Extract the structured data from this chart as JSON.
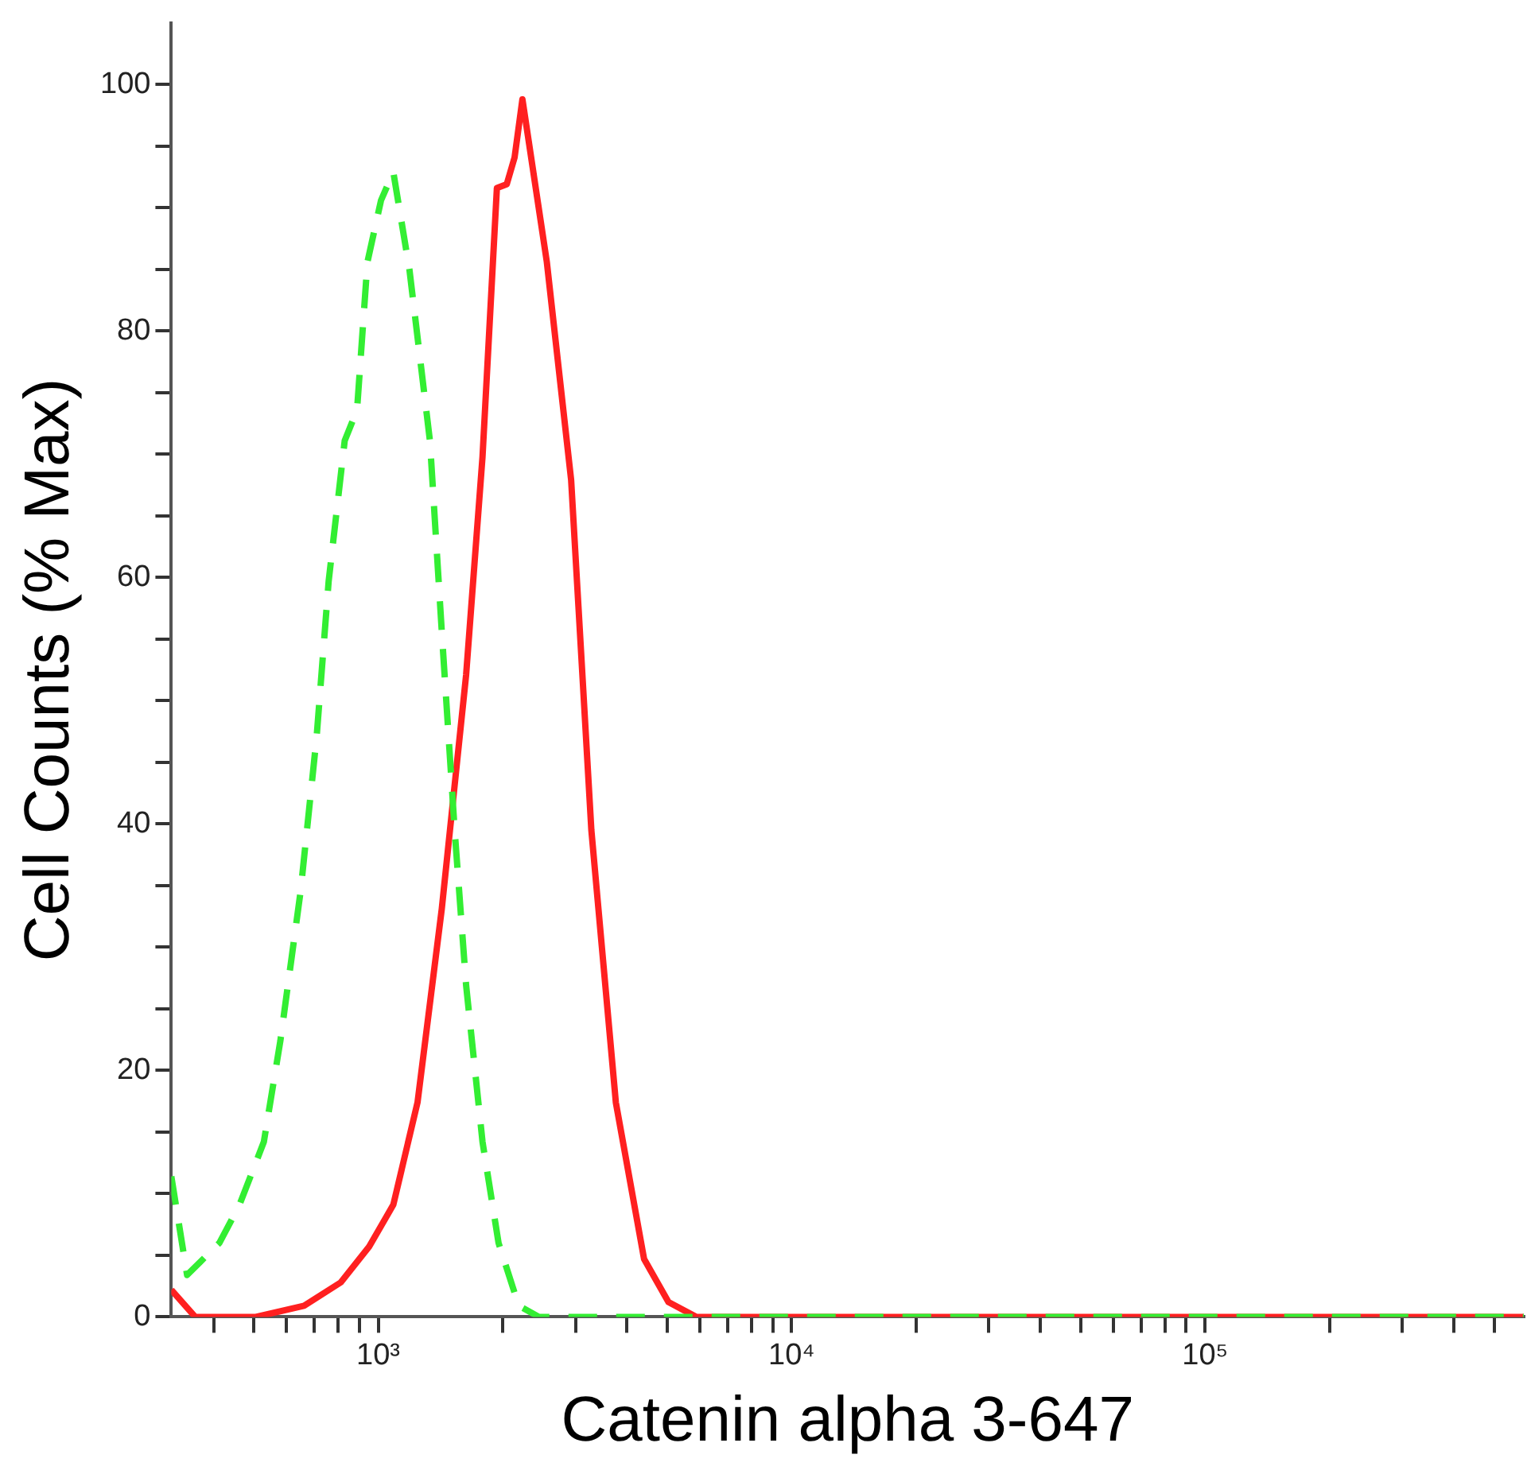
{
  "chart_data": {
    "type": "line",
    "xlabel": "Catenin alpha 3-647",
    "ylabel": "Cell Counts (% Max)",
    "log": "x",
    "grid": false,
    "legend": false,
    "marker": "none",
    "xlim": [
      316,
      590000
    ],
    "xticks": [
      {
        "value": 400,
        "label": null
      },
      {
        "value": 500,
        "label": null
      },
      {
        "value": 600,
        "label": null
      },
      {
        "value": 700,
        "label": null
      },
      {
        "value": 800,
        "label": null
      },
      {
        "value": 900,
        "label": null
      },
      {
        "value": 1000,
        "label": "10³"
      },
      {
        "value": 2000,
        "label": null
      },
      {
        "value": 3000,
        "label": null
      },
      {
        "value": 4000,
        "label": null
      },
      {
        "value": 5000,
        "label": null
      },
      {
        "value": 6000,
        "label": null
      },
      {
        "value": 7000,
        "label": null
      },
      {
        "value": 8000,
        "label": null
      },
      {
        "value": 9000,
        "label": null
      },
      {
        "value": 10000,
        "label": "10⁴"
      },
      {
        "value": 20000,
        "label": null
      },
      {
        "value": 30000,
        "label": null
      },
      {
        "value": 40000,
        "label": null
      },
      {
        "value": 50000,
        "label": null
      },
      {
        "value": 60000,
        "label": null
      },
      {
        "value": 70000,
        "label": null
      },
      {
        "value": 80000,
        "label": null
      },
      {
        "value": 90000,
        "label": null
      },
      {
        "value": 100000,
        "label": "10⁵"
      },
      {
        "value": 200000,
        "label": null
      },
      {
        "value": 300000,
        "label": null
      },
      {
        "value": 400000,
        "label": null
      },
      {
        "value": 500000,
        "label": null
      }
    ],
    "ylim": [
      0,
      105
    ],
    "yticks": [
      0,
      {
        "value": 5,
        "label": null
      },
      {
        "value": 10,
        "label": null
      },
      {
        "value": 15,
        "label": null
      },
      20,
      {
        "value": 25,
        "label": null
      },
      {
        "value": 30,
        "label": null
      },
      {
        "value": 35,
        "label": null
      },
      40,
      {
        "value": 45,
        "label": null
      },
      {
        "value": 50,
        "label": null
      },
      {
        "value": 55,
        "label": null
      },
      60,
      {
        "value": 65,
        "label": null
      },
      {
        "value": 70,
        "label": null
      },
      {
        "value": 75,
        "label": null
      },
      80,
      {
        "value": 85,
        "label": null
      },
      {
        "value": 90,
        "label": null
      },
      {
        "value": 95,
        "label": null
      },
      100
    ],
    "series": [
      {
        "color": "#33ee33",
        "line_style": "dashed",
        "x": [
          316,
          345,
          413,
          462,
          529,
          580,
          649,
          710,
          759,
          830,
          889,
          942,
          1016,
          1088,
          1190,
          1334,
          1427,
          1531,
          1632,
          1788,
          1955,
          2188,
          2449,
          10000,
          100000,
          590000
        ],
        "values": [
          11.4,
          3.4,
          6,
          9.1,
          14.2,
          22.4,
          34.5,
          47.1,
          59.7,
          71.1,
          73.6,
          85.6,
          90.6,
          92.9,
          85,
          71.1,
          55.3,
          39.5,
          26.9,
          14.2,
          6,
          0.9,
          0,
          0,
          0,
          0
        ]
      },
      {
        "color": "#ff2020",
        "line_style": "solid",
        "x": [
          316,
          361,
          506,
          662,
          812,
          951,
          1088,
          1245,
          1425,
          1632,
          1788,
          1937,
          2046,
          2138,
          2233,
          2558,
          2929,
          3278,
          3757,
          4396,
          5036,
          5877,
          10000,
          100000,
          590000
        ],
        "values": [
          2.2,
          0,
          0,
          0.9,
          2.8,
          5.7,
          9.1,
          17.4,
          33.1,
          52.1,
          69.8,
          91.6,
          91.9,
          94.1,
          98.8,
          85.6,
          67.9,
          39.5,
          17.4,
          4.7,
          1.2,
          0,
          0,
          0,
          0
        ]
      }
    ]
  }
}
